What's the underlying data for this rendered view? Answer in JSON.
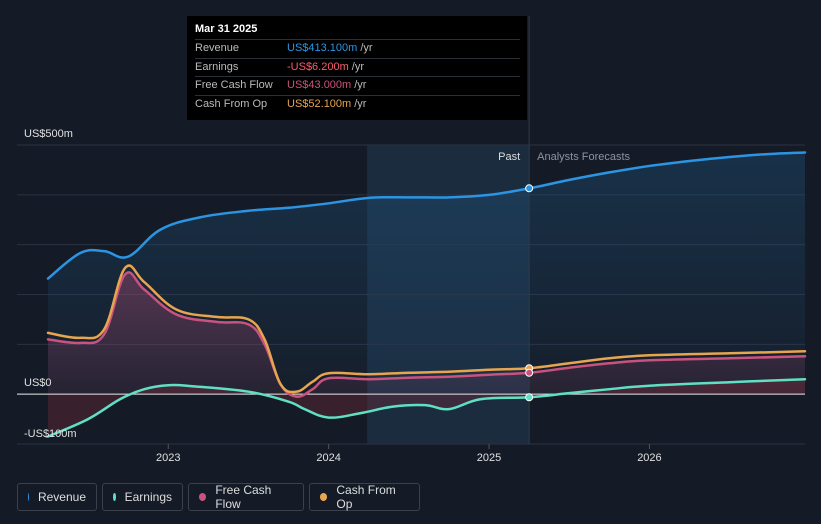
{
  "chart_data": {
    "type": "line",
    "title": "",
    "ylabel": "",
    "xlabel": "",
    "ylim": [
      -100,
      500
    ],
    "yticks": [
      {
        "value": 500,
        "label": "US$500m"
      },
      {
        "value": 0,
        "label": "US$0"
      },
      {
        "value": -100,
        "label": "-US$100m"
      }
    ],
    "xlim": [
      2022.25,
      2026.97
    ],
    "xticks": [
      {
        "value": 2023,
        "label": "2023"
      },
      {
        "value": 2024,
        "label": "2024"
      },
      {
        "value": 2025,
        "label": "2025"
      },
      {
        "value": 2026,
        "label": "2026"
      }
    ],
    "past_label": "Past",
    "forecast_label": "Analysts Forecasts",
    "divider_x": 2025.25,
    "highlight_start": 2024.24,
    "series": [
      {
        "name": "Revenue",
        "color": "#2b95e3",
        "fill": false,
        "points": [
          [
            2022.25,
            232
          ],
          [
            2022.45,
            283
          ],
          [
            2022.6,
            287
          ],
          [
            2022.75,
            276
          ],
          [
            2022.95,
            330
          ],
          [
            2023.2,
            355
          ],
          [
            2023.5,
            368
          ],
          [
            2023.75,
            374
          ],
          [
            2024.0,
            383
          ],
          [
            2024.25,
            394
          ],
          [
            2024.5,
            395
          ],
          [
            2024.75,
            395
          ],
          [
            2025.0,
            400
          ],
          [
            2025.25,
            413
          ],
          [
            2025.5,
            430
          ],
          [
            2025.75,
            445
          ],
          [
            2026.0,
            458
          ],
          [
            2026.25,
            468
          ],
          [
            2026.5,
            476
          ],
          [
            2026.75,
            482
          ],
          [
            2026.97,
            485
          ]
        ]
      },
      {
        "name": "Earnings",
        "color": "#5fe0c3",
        "fill": true,
        "points": [
          [
            2022.25,
            -85
          ],
          [
            2022.5,
            -50
          ],
          [
            2022.7,
            -10
          ],
          [
            2022.85,
            10
          ],
          [
            2023.0,
            18
          ],
          [
            2023.15,
            16
          ],
          [
            2023.5,
            5
          ],
          [
            2023.75,
            -15
          ],
          [
            2023.85,
            -30
          ],
          [
            2024.0,
            -47
          ],
          [
            2024.2,
            -38
          ],
          [
            2024.4,
            -25
          ],
          [
            2024.6,
            -22
          ],
          [
            2024.75,
            -30
          ],
          [
            2024.95,
            -10
          ],
          [
            2025.25,
            -6.2
          ],
          [
            2025.5,
            2
          ],
          [
            2025.75,
            10
          ],
          [
            2026.0,
            17
          ],
          [
            2026.5,
            24
          ],
          [
            2026.97,
            30
          ]
        ]
      },
      {
        "name": "Free Cash Flow",
        "color": "#c9527e",
        "fill": true,
        "points": [
          [
            2022.25,
            110
          ],
          [
            2022.45,
            103
          ],
          [
            2022.6,
            120
          ],
          [
            2022.73,
            240
          ],
          [
            2022.85,
            210
          ],
          [
            2023.05,
            160
          ],
          [
            2023.3,
            145
          ],
          [
            2023.5,
            140
          ],
          [
            2023.6,
            100
          ],
          [
            2023.7,
            20
          ],
          [
            2023.8,
            -5
          ],
          [
            2023.9,
            10
          ],
          [
            2024.0,
            32
          ],
          [
            2024.25,
            30
          ],
          [
            2024.5,
            33
          ],
          [
            2024.75,
            35
          ],
          [
            2025.0,
            39
          ],
          [
            2025.25,
            43
          ],
          [
            2025.5,
            53
          ],
          [
            2025.75,
            62
          ],
          [
            2026.0,
            68
          ],
          [
            2026.5,
            72
          ],
          [
            2026.97,
            76
          ]
        ]
      },
      {
        "name": "Cash From Op",
        "color": "#e7a54f",
        "fill": false,
        "points": [
          [
            2022.25,
            123
          ],
          [
            2022.45,
            113
          ],
          [
            2022.6,
            130
          ],
          [
            2022.73,
            253
          ],
          [
            2022.85,
            225
          ],
          [
            2023.05,
            170
          ],
          [
            2023.3,
            155
          ],
          [
            2023.5,
            150
          ],
          [
            2023.6,
            110
          ],
          [
            2023.7,
            20
          ],
          [
            2023.8,
            5
          ],
          [
            2023.9,
            25
          ],
          [
            2024.0,
            42
          ],
          [
            2024.25,
            40
          ],
          [
            2024.5,
            43
          ],
          [
            2024.75,
            45
          ],
          [
            2025.0,
            49
          ],
          [
            2025.25,
            52.1
          ],
          [
            2025.5,
            62
          ],
          [
            2025.75,
            72
          ],
          [
            2026.0,
            78
          ],
          [
            2026.5,
            82
          ],
          [
            2026.97,
            86
          ]
        ]
      }
    ],
    "markers": [
      {
        "series": "Revenue",
        "x": 2025.25,
        "y": 413.1
      },
      {
        "series": "Cash From Op",
        "x": 2025.25,
        "y": 52.1
      },
      {
        "series": "Free Cash Flow",
        "x": 2025.25,
        "y": 43.0
      },
      {
        "series": "Earnings",
        "x": 2025.25,
        "y": -6.2
      }
    ]
  },
  "tooltip": {
    "date": "Mar 31 2025",
    "rows": [
      {
        "label": "Revenue",
        "value": "US$413.100m",
        "unit": "/yr",
        "color": "#2b95e3"
      },
      {
        "label": "Earnings",
        "value": "-US$6.200m",
        "unit": "/yr",
        "color": "#ff5c6c"
      },
      {
        "label": "Free Cash Flow",
        "value": "US$43.000m",
        "unit": "/yr",
        "color": "#c9527e"
      },
      {
        "label": "Cash From Op",
        "value": "US$52.100m",
        "unit": "/yr",
        "color": "#e7a54f"
      }
    ]
  },
  "legend": {
    "items": [
      {
        "label": "Revenue",
        "color": "#2b95e3"
      },
      {
        "label": "Earnings",
        "color": "#5fe0c3"
      },
      {
        "label": "Free Cash Flow",
        "color": "#c9527e"
      },
      {
        "label": "Cash From Op",
        "color": "#e7a54f"
      }
    ]
  }
}
